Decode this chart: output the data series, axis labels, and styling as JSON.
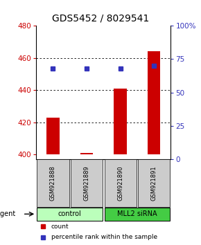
{
  "title": "GDS5452 / 8029541",
  "samples": [
    "GSM921888",
    "GSM921889",
    "GSM921890",
    "GSM921891"
  ],
  "count_values": [
    423,
    401,
    441,
    464
  ],
  "percentile_values": [
    68,
    68,
    68,
    70
  ],
  "ylim_left": [
    397,
    480
  ],
  "ylim_right": [
    0,
    100
  ],
  "yticks_left": [
    400,
    420,
    440,
    460,
    480
  ],
  "yticks_right": [
    0,
    25,
    50,
    75,
    100
  ],
  "bar_color": "#cc0000",
  "dot_color": "#3333bb",
  "bar_bottom": 400,
  "groups": [
    {
      "label": "control",
      "cols": [
        1,
        2
      ],
      "color": "#bbffbb"
    },
    {
      "label": "MLL2 siRNA",
      "cols": [
        3,
        4
      ],
      "color": "#44cc44"
    }
  ],
  "agent_label": "agent",
  "legend_count_label": "count",
  "legend_percentile_label": "percentile rank within the sample",
  "title_fontsize": 10,
  "bar_width": 0.38,
  "sample_box_color": "#cccccc",
  "grid_ticks": [
    420,
    440,
    460
  ],
  "left_color": "#cc0000",
  "right_color": "#3333bb"
}
